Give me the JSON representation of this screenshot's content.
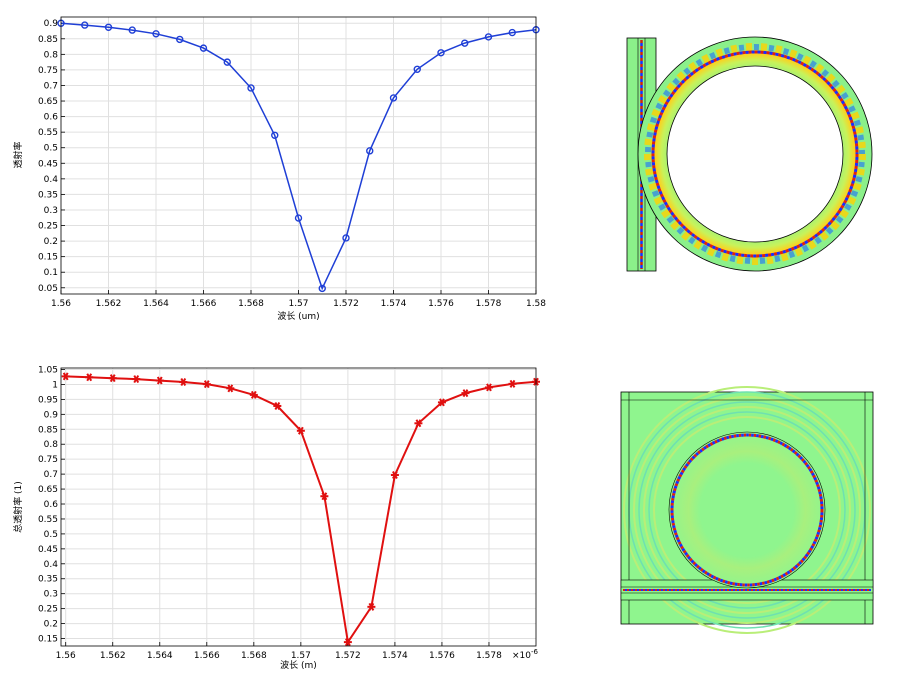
{
  "chart_data": [
    {
      "type": "line",
      "xlabel": "波长 (um)",
      "ylabel": "透射率",
      "xlim": [
        1.56,
        1.58
      ],
      "ylim": [
        0.03,
        0.92
      ],
      "x_ticks": [
        1.56,
        1.562,
        1.564,
        1.566,
        1.568,
        1.57,
        1.572,
        1.574,
        1.576,
        1.578,
        1.58
      ],
      "x_tick_labels": [
        "1.56",
        "1.562",
        "1.564",
        "1.566",
        "1.568",
        "1.57",
        "1.572",
        "1.574",
        "1.576",
        "1.578",
        "1.58"
      ],
      "y_ticks": [
        0.05,
        0.1,
        0.15,
        0.2,
        0.25,
        0.3,
        0.35,
        0.4,
        0.45,
        0.5,
        0.55,
        0.6,
        0.65,
        0.7,
        0.75,
        0.8,
        0.85,
        0.9
      ],
      "y_tick_labels": [
        "0.05",
        "0.1",
        "0.15",
        "0.2",
        "0.25",
        "0.3",
        "0.35",
        "0.4",
        "0.45",
        "0.5",
        "0.55",
        "0.6",
        "0.65",
        "0.7",
        "0.75",
        "0.8",
        "0.85",
        "0.9"
      ],
      "grid": true,
      "marker": "circle",
      "color": "#1f3fd6",
      "x": [
        1.56,
        1.561,
        1.562,
        1.563,
        1.564,
        1.565,
        1.566,
        1.567,
        1.568,
        1.569,
        1.57,
        1.571,
        1.572,
        1.573,
        1.574,
        1.575,
        1.576,
        1.577,
        1.578,
        1.579,
        1.58
      ],
      "values": [
        0.9,
        0.894,
        0.887,
        0.878,
        0.866,
        0.848,
        0.82,
        0.775,
        0.692,
        0.54,
        0.274,
        0.048,
        0.21,
        0.49,
        0.66,
        0.752,
        0.805,
        0.836,
        0.856,
        0.87,
        0.879
      ]
    },
    {
      "type": "line",
      "xlabel": "波长 (m)",
      "ylabel": "总透射率 (1)",
      "x_multiplier": "×10",
      "x_multiplier_exp": "-6",
      "xlim": [
        1.5598,
        1.58
      ],
      "ylim": [
        0.125,
        1.055
      ],
      "x_ticks": [
        1.56,
        1.562,
        1.564,
        1.566,
        1.568,
        1.57,
        1.572,
        1.574,
        1.576,
        1.578
      ],
      "x_tick_labels": [
        "1.56",
        "1.562",
        "1.564",
        "1.566",
        "1.568",
        "1.57",
        "1.572",
        "1.574",
        "1.576",
        "1.578"
      ],
      "y_ticks": [
        0.15,
        0.2,
        0.25,
        0.3,
        0.35,
        0.4,
        0.45,
        0.5,
        0.55,
        0.6,
        0.65,
        0.7,
        0.75,
        0.8,
        0.85,
        0.9,
        0.95,
        1,
        1.05
      ],
      "y_tick_labels": [
        "0.15",
        "0.2",
        "0.25",
        "0.3",
        "0.35",
        "0.4",
        "0.45",
        "0.5",
        "0.55",
        "0.6",
        "0.65",
        "0.7",
        "0.75",
        "0.8",
        "0.85",
        "0.9",
        "0.95",
        "1",
        "1.05"
      ],
      "grid": true,
      "marker": "asterisk",
      "color": "#e01010",
      "x": [
        1.56,
        1.561,
        1.562,
        1.563,
        1.564,
        1.565,
        1.566,
        1.567,
        1.568,
        1.569,
        1.57,
        1.571,
        1.572,
        1.573,
        1.574,
        1.575,
        1.576,
        1.577,
        1.578,
        1.579,
        1.58
      ],
      "values": [
        1.027,
        1.024,
        1.021,
        1.018,
        1.013,
        1.008,
        1.001,
        0.987,
        0.965,
        0.928,
        0.845,
        0.626,
        0.138,
        0.256,
        0.697,
        0.87,
        0.94,
        0.971,
        0.99,
        1.002,
        1.009
      ]
    }
  ],
  "field_images": [
    {
      "type": "ring-resonator-field",
      "colormap": [
        "#1a2cff",
        "#6fe88a",
        "#ffd200",
        "#e02010"
      ]
    },
    {
      "type": "disk-resonator-field",
      "colormap": [
        "#1a2cff",
        "#6fe88a",
        "#ffd200",
        "#e02010"
      ]
    }
  ]
}
